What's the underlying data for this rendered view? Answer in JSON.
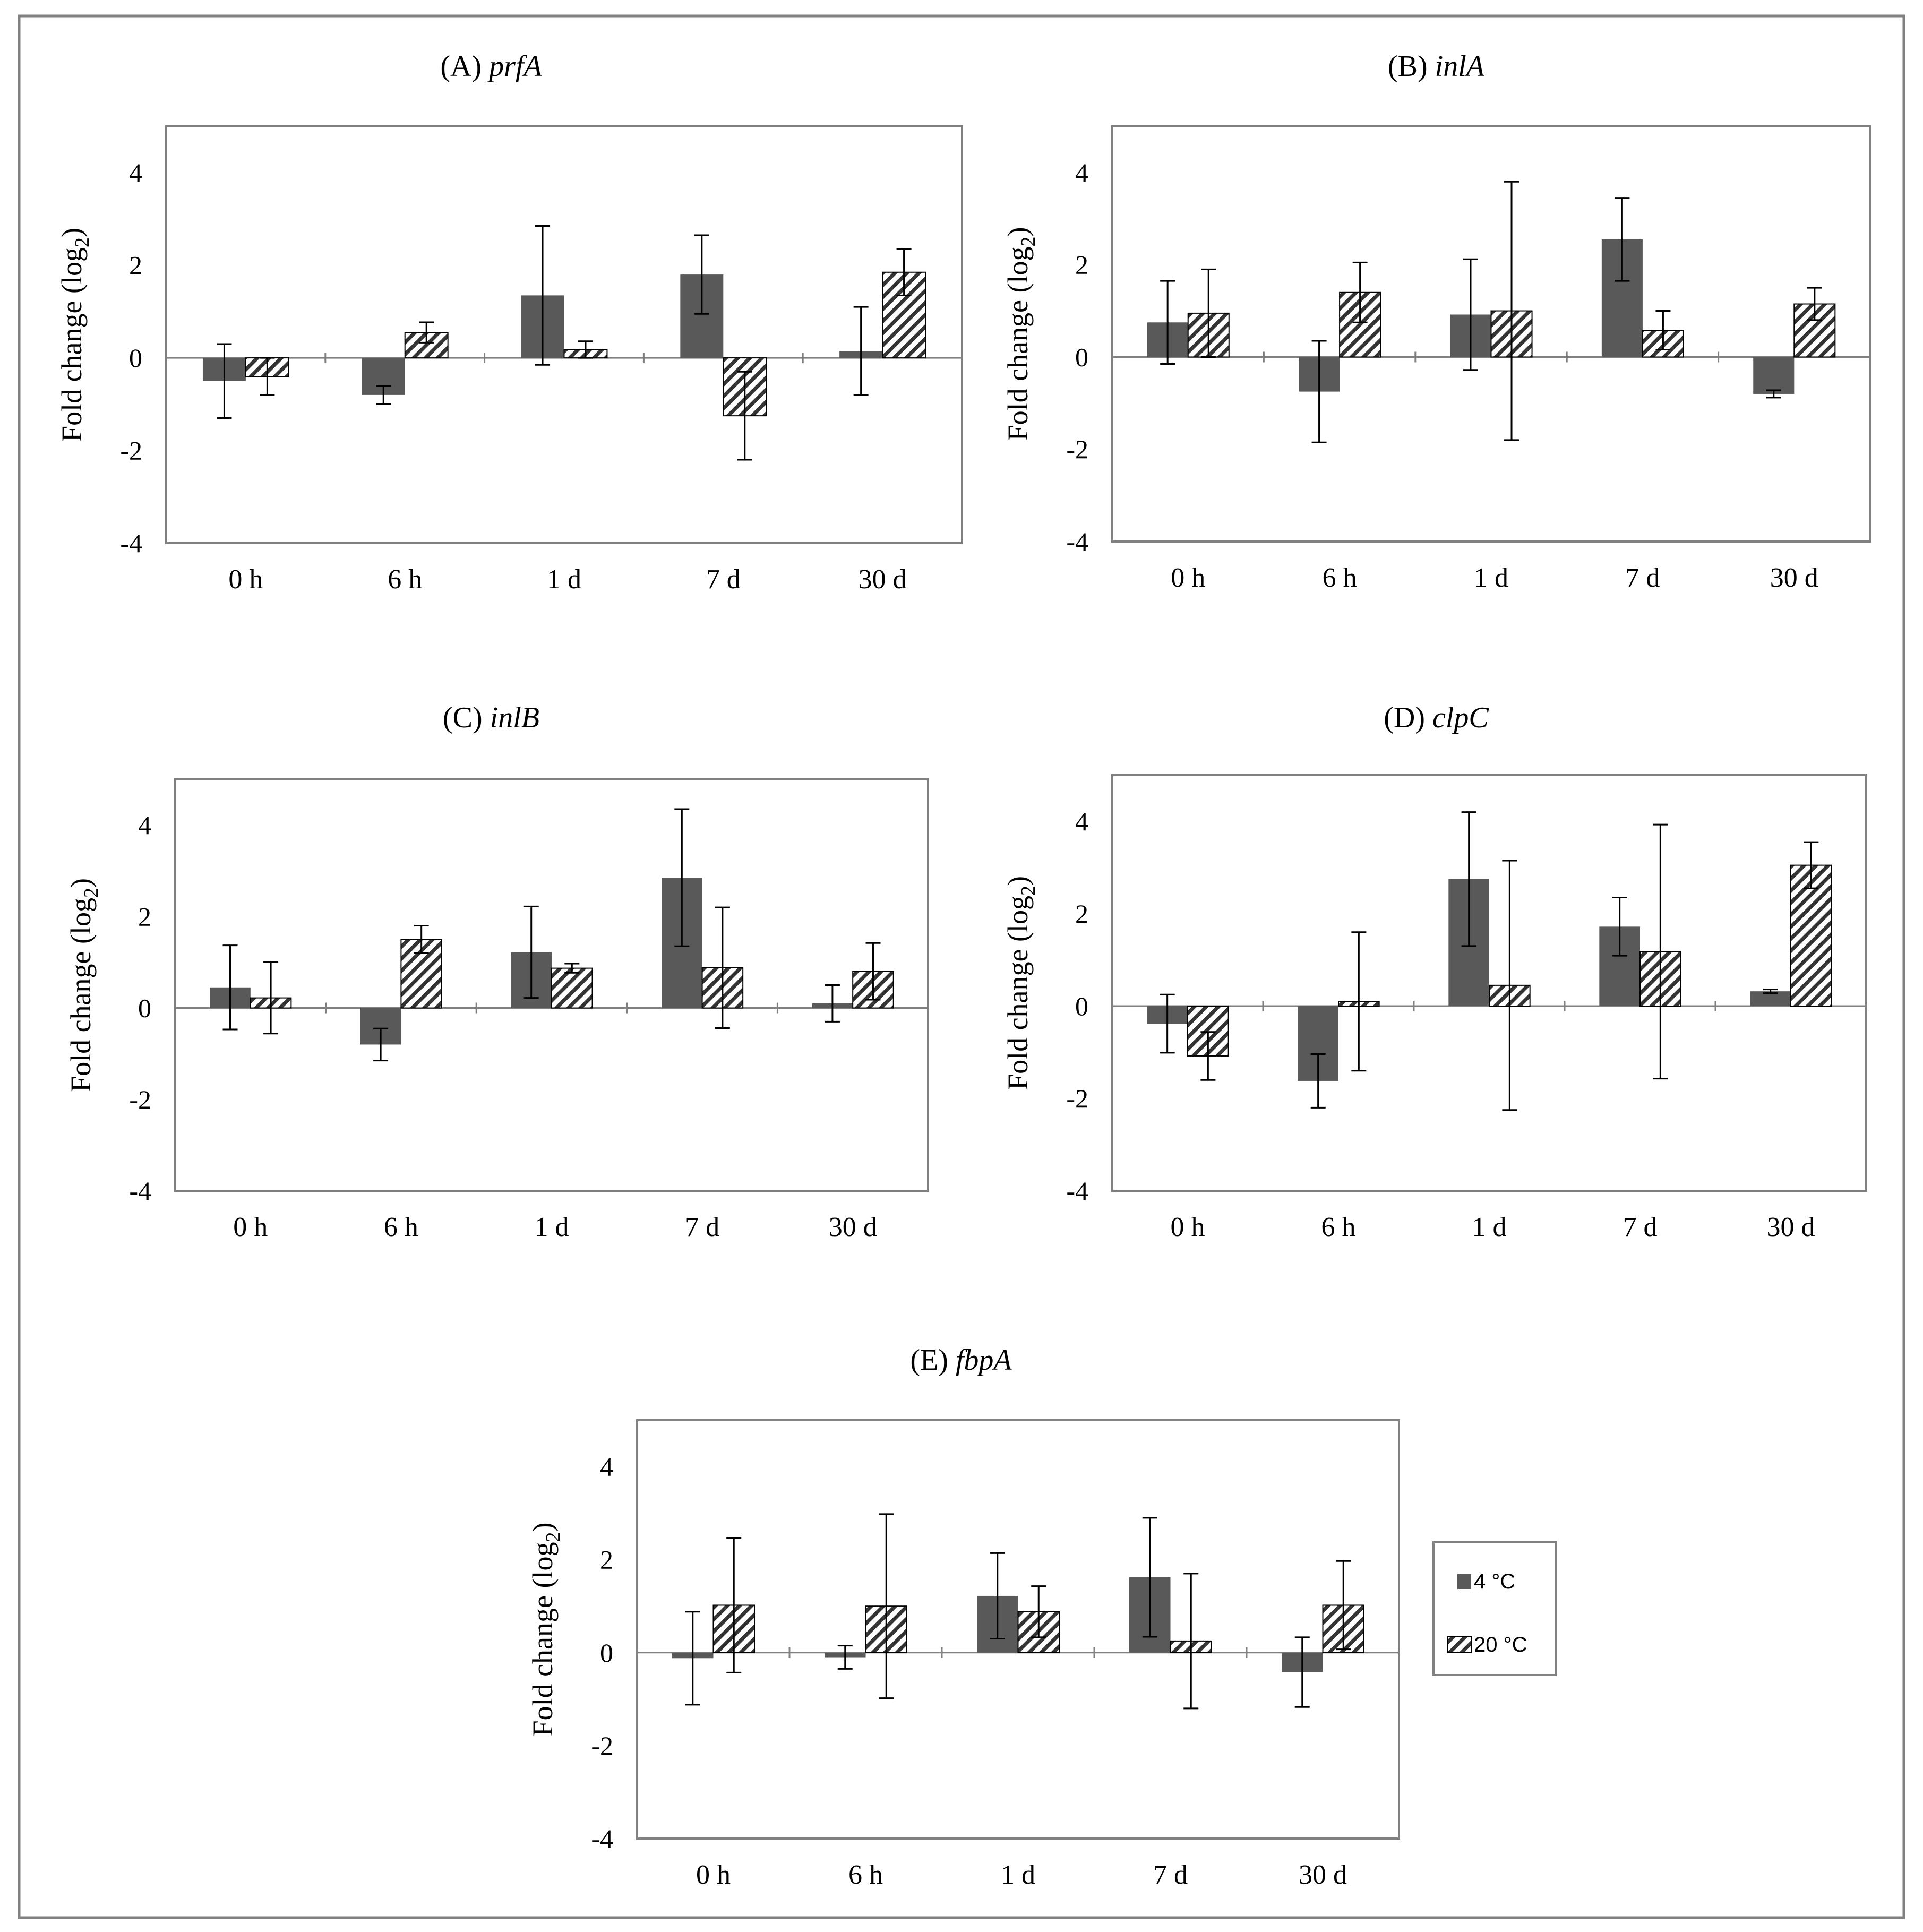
{
  "colors": {
    "series_4c": "#595959",
    "series_20c": "#ffffff",
    "hatch": "#333333",
    "frame": "#808080",
    "axis": "#808080"
  },
  "legend": {
    "items": [
      "4 °C",
      "20 °C"
    ]
  },
  "chart_data": [
    {
      "type": "bar",
      "title_prefix": "(A) ",
      "gene": "prfA",
      "categories": [
        "0 h",
        "6 h",
        "1 d",
        "7 d",
        "30 d"
      ],
      "ylabel": "Fold change (log2)",
      "ylabel_main": "Fold change",
      "ylabel_log": "(log",
      "ylabel_sub": "2",
      "ylabel_close": ")",
      "ylim": [
        -4,
        5
      ],
      "yticks": [
        -4,
        -2,
        0,
        2,
        4
      ],
      "ytick_labels": [
        "-4",
        "-2",
        "0",
        "2",
        "4"
      ],
      "series": [
        {
          "name": "4 °C",
          "values": [
            -0.5,
            -0.8,
            1.35,
            1.8,
            0.15
          ],
          "err": [
            0.8,
            0.2,
            1.5,
            0.85,
            0.95
          ]
        },
        {
          "name": "20 °C",
          "values": [
            -0.4,
            0.55,
            0.18,
            -1.25,
            1.85
          ],
          "err": [
            0.4,
            0.22,
            0.18,
            0.95,
            0.5
          ]
        }
      ]
    },
    {
      "type": "bar",
      "title_prefix": "(B) ",
      "gene": "inlA",
      "categories": [
        "0 h",
        "6 h",
        "1 d",
        "7 d",
        "30 d"
      ],
      "ylabel": "Fold change (log2)",
      "ylabel_main": "Fold change",
      "ylabel_log": "(log",
      "ylabel_sub": "2",
      "ylabel_close": ")",
      "ylim": [
        -4,
        5
      ],
      "yticks": [
        -4,
        -2,
        0,
        2,
        4
      ],
      "ytick_labels": [
        "-4",
        "-2",
        "0",
        "2",
        "4"
      ],
      "series": [
        {
          "name": "4 °C",
          "values": [
            0.75,
            -0.75,
            0.92,
            2.55,
            -0.8
          ],
          "err": [
            0.9,
            1.1,
            1.2,
            0.9,
            0.08
          ]
        },
        {
          "name": "20 °C",
          "values": [
            0.95,
            1.4,
            1.0,
            0.58,
            1.15
          ],
          "err": [
            0.95,
            0.65,
            2.8,
            0.42,
            0.35
          ]
        }
      ]
    },
    {
      "type": "bar",
      "title_prefix": "(C) ",
      "gene": "inlB",
      "categories": [
        "0 h",
        "6 h",
        "1 d",
        "7 d",
        "30 d"
      ],
      "ylabel": "Fold change (log2)",
      "ylabel_main": "Fold change",
      "ylabel_log": "(log",
      "ylabel_sub": "2",
      "ylabel_close": ")",
      "ylim": [
        -4,
        5
      ],
      "yticks": [
        -4,
        -2,
        0,
        2,
        4
      ],
      "ytick_labels": [
        "-4",
        "-2",
        "0",
        "2",
        "4"
      ],
      "series": [
        {
          "name": "4 °C",
          "values": [
            0.45,
            -0.8,
            1.22,
            2.85,
            0.1
          ],
          "err": [
            0.92,
            0.35,
            1.0,
            1.5,
            0.4
          ]
        },
        {
          "name": "20 °C",
          "values": [
            0.22,
            1.5,
            0.87,
            0.88,
            0.8
          ],
          "err": [
            0.78,
            0.3,
            0.1,
            1.32,
            0.62
          ]
        }
      ]
    },
    {
      "type": "bar",
      "title_prefix": "(D) ",
      "gene": "clpC",
      "categories": [
        "0 h",
        "6 h",
        "1 d",
        "7 d",
        "30 d"
      ],
      "ylabel": "Fold change (log2)",
      "ylabel_main": "Fold change",
      "ylabel_log": "(log",
      "ylabel_sub": "2",
      "ylabel_close": ")",
      "ylim": [
        -4,
        5
      ],
      "yticks": [
        -4,
        -2,
        0,
        2,
        4
      ],
      "ytick_labels": [
        "-4",
        "-2",
        "0",
        "2",
        "4"
      ],
      "series": [
        {
          "name": "4 °C",
          "values": [
            -0.38,
            -1.62,
            2.75,
            1.72,
            0.32
          ],
          "err": [
            0.63,
            0.58,
            1.45,
            0.63,
            0.04
          ]
        },
        {
          "name": "20 °C",
          "values": [
            -1.08,
            0.1,
            0.45,
            1.18,
            3.05
          ],
          "err": [
            0.52,
            1.5,
            2.7,
            2.75,
            0.5
          ]
        }
      ]
    },
    {
      "type": "bar",
      "title_prefix": "(E) ",
      "gene": "fbpA",
      "categories": [
        "0 h",
        "6 h",
        "1 d",
        "7 d",
        "30 d"
      ],
      "ylabel": "Fold change (log2)",
      "ylabel_main": "Fold change",
      "ylabel_log": "(log",
      "ylabel_sub": "2",
      "ylabel_close": ")",
      "ylim": [
        -4,
        5
      ],
      "yticks": [
        -4,
        -2,
        0,
        2,
        4
      ],
      "ytick_labels": [
        "-4",
        "-2",
        "0",
        "2",
        "4"
      ],
      "series": [
        {
          "name": "4 °C",
          "values": [
            -0.12,
            -0.1,
            1.22,
            1.62,
            -0.42
          ],
          "err": [
            1.0,
            0.25,
            0.92,
            1.28,
            0.75
          ]
        },
        {
          "name": "20 °C",
          "values": [
            1.02,
            1.0,
            0.88,
            0.25,
            1.02
          ],
          "err": [
            1.45,
            1.98,
            0.55,
            1.45,
            0.95
          ]
        }
      ]
    }
  ]
}
